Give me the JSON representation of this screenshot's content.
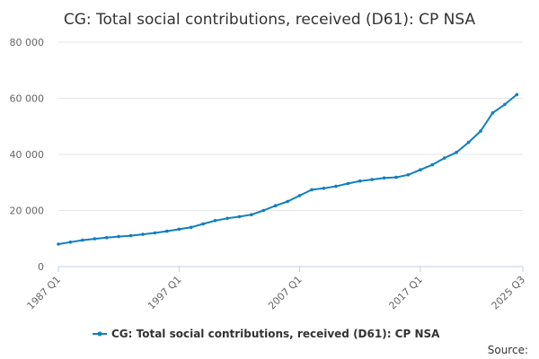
{
  "chart_data": {
    "type": "line",
    "title": "CG: Total social contributions, received (D61): CP NSA",
    "xlabel": "",
    "ylabel": "",
    "x_tick_labels": [
      "1987 Q1",
      "1997 Q1",
      "2007 Q1",
      "2017 Q1",
      "2025 Q3"
    ],
    "y_tick_labels": [
      "0",
      "20 000",
      "40 000",
      "60 000",
      "80 000"
    ],
    "y_ticks": [
      0,
      20000,
      40000,
      60000,
      80000
    ],
    "ylim": [
      0,
      80000
    ],
    "x_range": [
      "1987 Q1",
      "2025 Q3"
    ],
    "grid": "horizontal",
    "legend_position": "bottom",
    "series": [
      {
        "name": "CG: Total social contributions, received (D61): CP NSA",
        "color": "#0f7fc0",
        "x": [
          "1987 Q1",
          "1988 Q1",
          "1989 Q1",
          "1990 Q1",
          "1991 Q1",
          "1992 Q1",
          "1993 Q1",
          "1994 Q1",
          "1995 Q1",
          "1996 Q1",
          "1997 Q1",
          "1998 Q1",
          "1999 Q1",
          "2000 Q1",
          "2001 Q1",
          "2002 Q1",
          "2003 Q1",
          "2004 Q1",
          "2005 Q1",
          "2006 Q1",
          "2007 Q1",
          "2008 Q1",
          "2009 Q1",
          "2010 Q1",
          "2011 Q1",
          "2012 Q1",
          "2013 Q1",
          "2014 Q1",
          "2015 Q1",
          "2016 Q1",
          "2017 Q1",
          "2018 Q1",
          "2019 Q1",
          "2020 Q1",
          "2021 Q1",
          "2022 Q1",
          "2023 Q1",
          "2024 Q1",
          "2025 Q1"
        ],
        "values": [
          8000,
          8700,
          9400,
          9900,
          10300,
          10700,
          11000,
          11500,
          12000,
          12600,
          13300,
          14000,
          15200,
          16400,
          17200,
          17800,
          18500,
          20000,
          21700,
          23200,
          25300,
          27400,
          27900,
          28600,
          29600,
          30500,
          31000,
          31600,
          31800,
          32700,
          34500,
          36300,
          38700,
          40700,
          44300,
          48300,
          54800,
          57800,
          61300
        ]
      }
    ],
    "source_label": "Source:"
  }
}
